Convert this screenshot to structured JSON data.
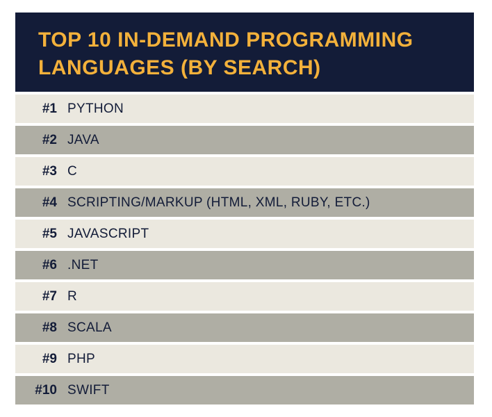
{
  "title": "TOP 10 IN-DEMAND PROGRAMMING LANGUAGES (BY SEARCH)",
  "rows": [
    {
      "rank": "#1",
      "name": "PYTHON"
    },
    {
      "rank": "#2",
      "name": "JAVA"
    },
    {
      "rank": "#3",
      "name": "C"
    },
    {
      "rank": "#4",
      "name": "SCRIPTING/MARKUP (HTML, XML, RUBY, ETC.)"
    },
    {
      "rank": "#5",
      "name": "JAVASCRIPT"
    },
    {
      "rank": "#6",
      "name": ".NET"
    },
    {
      "rank": "#7",
      "name": "R"
    },
    {
      "rank": "#8",
      "name": "SCALA"
    },
    {
      "rank": "#9",
      "name": "PHP"
    },
    {
      "rank": "#10",
      "name": "SWIFT"
    }
  ]
}
